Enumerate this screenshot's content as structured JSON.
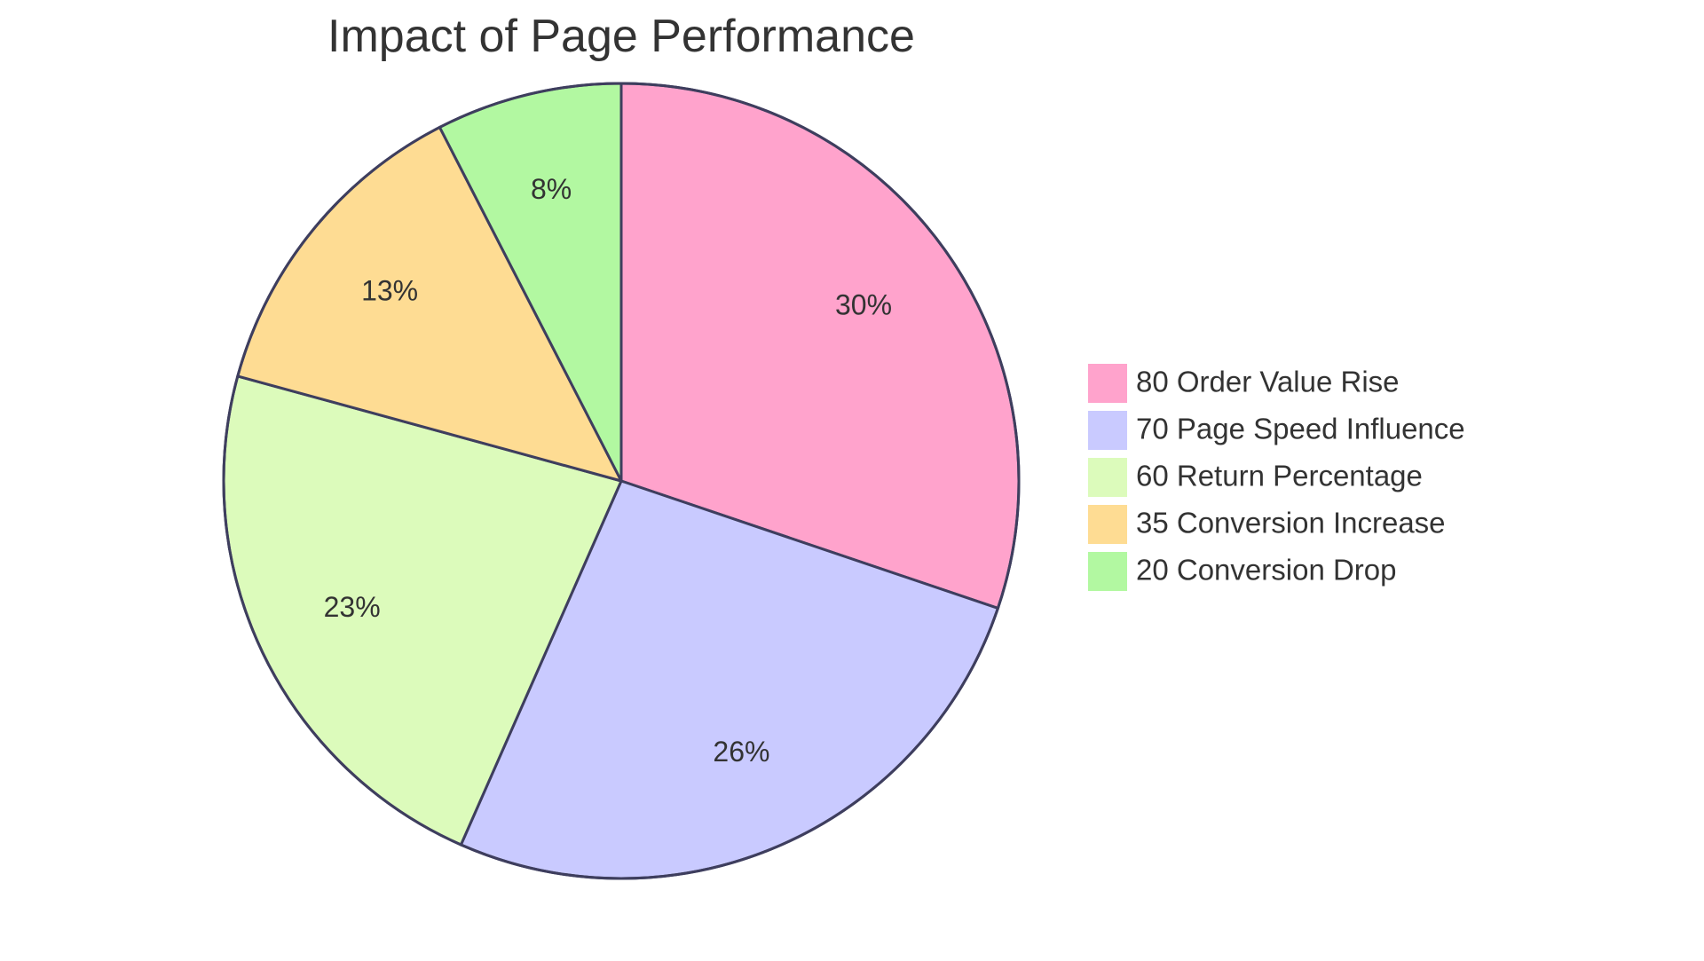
{
  "chart_data": {
    "type": "pie",
    "title": "Impact of Page Performance",
    "categories": [
      "80 Order Value Rise",
      "70 Page Speed Influence",
      "60 Return Percentage",
      "35 Conversion Increase",
      "20 Conversion Drop"
    ],
    "values": [
      80,
      70,
      60,
      35,
      20
    ],
    "percent_labels": [
      "30%",
      "26%",
      "23%",
      "13%",
      "8%"
    ],
    "colors": [
      "#ffa3cc",
      "#c9caff",
      "#dcfbbb",
      "#fedc93",
      "#b2f8a1"
    ],
    "legend_position": "right"
  }
}
